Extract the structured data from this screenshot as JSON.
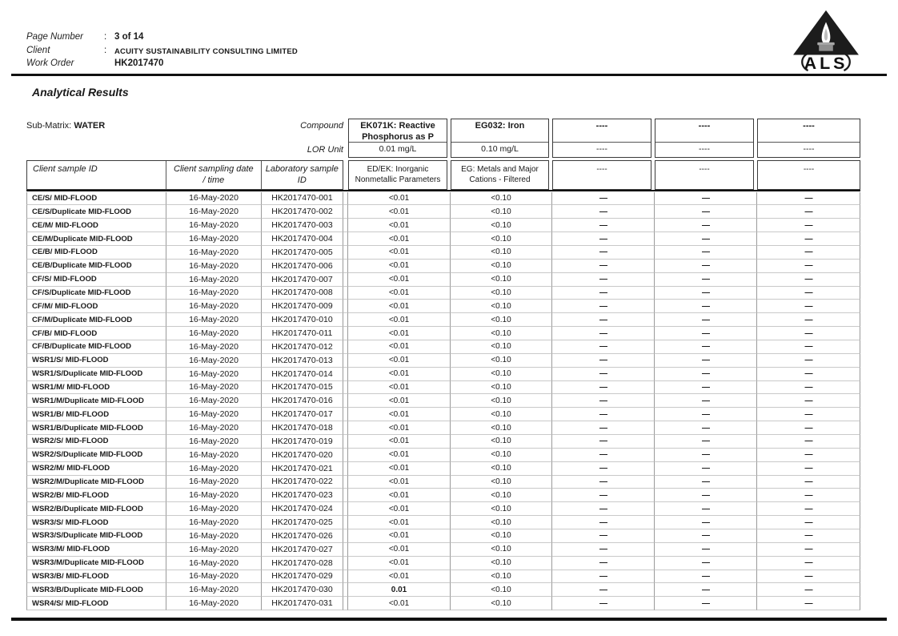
{
  "header": {
    "page_number_label": "Page Number",
    "page_number_colon": ":",
    "page_number_value": "3 of 14",
    "client_label": "Client",
    "client_colon": ":",
    "client_value": "ACUITY SUSTAINABILITY CONSULTING LIMITED",
    "work_order_label": "Work Order",
    "work_order_colon": "",
    "work_order_value": "HK2017470",
    "logo_text": "ALS"
  },
  "title": "Analytical Results",
  "table": {
    "sub_matrix_label": "Sub-Matrix:",
    "sub_matrix_value": "WATER",
    "compound_label": "Compound",
    "lor_unit_label": "LOR Unit",
    "columns": {
      "sample_id": "Client sample ID",
      "sampling_date_line1": "Client sampling date",
      "sampling_date_line2": "/ time",
      "lab_sample_line1": "Laboratory sample",
      "lab_sample_line2": "ID"
    },
    "methods": [
      {
        "compound": "EK071K: Reactive Phosphorus as P",
        "lor": "0.01 mg/L",
        "group": "ED/EK: Inorganic Nonmetallic Parameters"
      },
      {
        "compound": "EG032: Iron",
        "lor": "0.10 mg/L",
        "group": "EG: Metals and Major Cations - Filtered"
      },
      {
        "compound": "----",
        "lor": "----",
        "group": "----"
      },
      {
        "compound": "----",
        "lor": "----",
        "group": "----"
      },
      {
        "compound": "----",
        "lor": "----",
        "group": "----"
      }
    ],
    "rows": [
      {
        "sample_id": "CE/S/ MID-FLOOD",
        "date": "16-May-2020",
        "lab_id": "HK2017470-001",
        "reactive_p": "<0.01",
        "reactive_p_bold": false,
        "iron": "<0.10",
        "c4": "—",
        "c5": "—",
        "c6": "—"
      },
      {
        "sample_id": "CE/S/Duplicate MID-FLOOD",
        "date": "16-May-2020",
        "lab_id": "HK2017470-002",
        "reactive_p": "<0.01",
        "reactive_p_bold": false,
        "iron": "<0.10",
        "c4": "—",
        "c5": "—",
        "c6": "—"
      },
      {
        "sample_id": "CE/M/ MID-FLOOD",
        "date": "16-May-2020",
        "lab_id": "HK2017470-003",
        "reactive_p": "<0.01",
        "reactive_p_bold": false,
        "iron": "<0.10",
        "c4": "—",
        "c5": "—",
        "c6": "—"
      },
      {
        "sample_id": "CE/M/Duplicate MID-FLOOD",
        "date": "16-May-2020",
        "lab_id": "HK2017470-004",
        "reactive_p": "<0.01",
        "reactive_p_bold": false,
        "iron": "<0.10",
        "c4": "—",
        "c5": "—",
        "c6": "—"
      },
      {
        "sample_id": "CE/B/ MID-FLOOD",
        "date": "16-May-2020",
        "lab_id": "HK2017470-005",
        "reactive_p": "<0.01",
        "reactive_p_bold": false,
        "iron": "<0.10",
        "c4": "—",
        "c5": "—",
        "c6": "—"
      },
      {
        "sample_id": "CE/B/Duplicate MID-FLOOD",
        "date": "16-May-2020",
        "lab_id": "HK2017470-006",
        "reactive_p": "<0.01",
        "reactive_p_bold": false,
        "iron": "<0.10",
        "c4": "—",
        "c5": "—",
        "c6": "—"
      },
      {
        "sample_id": "CF/S/ MID-FLOOD",
        "date": "16-May-2020",
        "lab_id": "HK2017470-007",
        "reactive_p": "<0.01",
        "reactive_p_bold": false,
        "iron": "<0.10",
        "c4": "—",
        "c5": "—",
        "c6": "—"
      },
      {
        "sample_id": "CF/S/Duplicate MID-FLOOD",
        "date": "16-May-2020",
        "lab_id": "HK2017470-008",
        "reactive_p": "<0.01",
        "reactive_p_bold": false,
        "iron": "<0.10",
        "c4": "—",
        "c5": "—",
        "c6": "—"
      },
      {
        "sample_id": "CF/M/ MID-FLOOD",
        "date": "16-May-2020",
        "lab_id": "HK2017470-009",
        "reactive_p": "<0.01",
        "reactive_p_bold": false,
        "iron": "<0.10",
        "c4": "—",
        "c5": "—",
        "c6": "—"
      },
      {
        "sample_id": "CF/M/Duplicate MID-FLOOD",
        "date": "16-May-2020",
        "lab_id": "HK2017470-010",
        "reactive_p": "<0.01",
        "reactive_p_bold": false,
        "iron": "<0.10",
        "c4": "—",
        "c5": "—",
        "c6": "—"
      },
      {
        "sample_id": "CF/B/ MID-FLOOD",
        "date": "16-May-2020",
        "lab_id": "HK2017470-011",
        "reactive_p": "<0.01",
        "reactive_p_bold": false,
        "iron": "<0.10",
        "c4": "—",
        "c5": "—",
        "c6": "—"
      },
      {
        "sample_id": "CF/B/Duplicate MID-FLOOD",
        "date": "16-May-2020",
        "lab_id": "HK2017470-012",
        "reactive_p": "<0.01",
        "reactive_p_bold": false,
        "iron": "<0.10",
        "c4": "—",
        "c5": "—",
        "c6": "—"
      },
      {
        "sample_id": "WSR1/S/ MID-FLOOD",
        "date": "16-May-2020",
        "lab_id": "HK2017470-013",
        "reactive_p": "<0.01",
        "reactive_p_bold": false,
        "iron": "<0.10",
        "c4": "—",
        "c5": "—",
        "c6": "—"
      },
      {
        "sample_id": "WSR1/S/Duplicate MID-FLOOD",
        "date": "16-May-2020",
        "lab_id": "HK2017470-014",
        "reactive_p": "<0.01",
        "reactive_p_bold": false,
        "iron": "<0.10",
        "c4": "—",
        "c5": "—",
        "c6": "—"
      },
      {
        "sample_id": "WSR1/M/ MID-FLOOD",
        "date": "16-May-2020",
        "lab_id": "HK2017470-015",
        "reactive_p": "<0.01",
        "reactive_p_bold": false,
        "iron": "<0.10",
        "c4": "—",
        "c5": "—",
        "c6": "—"
      },
      {
        "sample_id": "WSR1/M/Duplicate MID-FLOOD",
        "date": "16-May-2020",
        "lab_id": "HK2017470-016",
        "reactive_p": "<0.01",
        "reactive_p_bold": false,
        "iron": "<0.10",
        "c4": "—",
        "c5": "—",
        "c6": "—"
      },
      {
        "sample_id": "WSR1/B/ MID-FLOOD",
        "date": "16-May-2020",
        "lab_id": "HK2017470-017",
        "reactive_p": "<0.01",
        "reactive_p_bold": false,
        "iron": "<0.10",
        "c4": "—",
        "c5": "—",
        "c6": "—"
      },
      {
        "sample_id": "WSR1/B/Duplicate MID-FLOOD",
        "date": "16-May-2020",
        "lab_id": "HK2017470-018",
        "reactive_p": "<0.01",
        "reactive_p_bold": false,
        "iron": "<0.10",
        "c4": "—",
        "c5": "—",
        "c6": "—"
      },
      {
        "sample_id": "WSR2/S/ MID-FLOOD",
        "date": "16-May-2020",
        "lab_id": "HK2017470-019",
        "reactive_p": "<0.01",
        "reactive_p_bold": false,
        "iron": "<0.10",
        "c4": "—",
        "c5": "—",
        "c6": "—"
      },
      {
        "sample_id": "WSR2/S/Duplicate MID-FLOOD",
        "date": "16-May-2020",
        "lab_id": "HK2017470-020",
        "reactive_p": "<0.01",
        "reactive_p_bold": false,
        "iron": "<0.10",
        "c4": "—",
        "c5": "—",
        "c6": "—"
      },
      {
        "sample_id": "WSR2/M/ MID-FLOOD",
        "date": "16-May-2020",
        "lab_id": "HK2017470-021",
        "reactive_p": "<0.01",
        "reactive_p_bold": false,
        "iron": "<0.10",
        "c4": "—",
        "c5": "—",
        "c6": "—"
      },
      {
        "sample_id": "WSR2/M/Duplicate MID-FLOOD",
        "date": "16-May-2020",
        "lab_id": "HK2017470-022",
        "reactive_p": "<0.01",
        "reactive_p_bold": false,
        "iron": "<0.10",
        "c4": "—",
        "c5": "—",
        "c6": "—"
      },
      {
        "sample_id": "WSR2/B/ MID-FLOOD",
        "date": "16-May-2020",
        "lab_id": "HK2017470-023",
        "reactive_p": "<0.01",
        "reactive_p_bold": false,
        "iron": "<0.10",
        "c4": "—",
        "c5": "—",
        "c6": "—"
      },
      {
        "sample_id": "WSR2/B/Duplicate MID-FLOOD",
        "date": "16-May-2020",
        "lab_id": "HK2017470-024",
        "reactive_p": "<0.01",
        "reactive_p_bold": false,
        "iron": "<0.10",
        "c4": "—",
        "c5": "—",
        "c6": "—"
      },
      {
        "sample_id": "WSR3/S/ MID-FLOOD",
        "date": "16-May-2020",
        "lab_id": "HK2017470-025",
        "reactive_p": "<0.01",
        "reactive_p_bold": false,
        "iron": "<0.10",
        "c4": "—",
        "c5": "—",
        "c6": "—"
      },
      {
        "sample_id": "WSR3/S/Duplicate MID-FLOOD",
        "date": "16-May-2020",
        "lab_id": "HK2017470-026",
        "reactive_p": "<0.01",
        "reactive_p_bold": false,
        "iron": "<0.10",
        "c4": "—",
        "c5": "—",
        "c6": "—"
      },
      {
        "sample_id": "WSR3/M/ MID-FLOOD",
        "date": "16-May-2020",
        "lab_id": "HK2017470-027",
        "reactive_p": "<0.01",
        "reactive_p_bold": false,
        "iron": "<0.10",
        "c4": "—",
        "c5": "—",
        "c6": "—"
      },
      {
        "sample_id": "WSR3/M/Duplicate MID-FLOOD",
        "date": "16-May-2020",
        "lab_id": "HK2017470-028",
        "reactive_p": "<0.01",
        "reactive_p_bold": false,
        "iron": "<0.10",
        "c4": "—",
        "c5": "—",
        "c6": "—"
      },
      {
        "sample_id": "WSR3/B/ MID-FLOOD",
        "date": "16-May-2020",
        "lab_id": "HK2017470-029",
        "reactive_p": "<0.01",
        "reactive_p_bold": false,
        "iron": "<0.10",
        "c4": "—",
        "c5": "—",
        "c6": "—"
      },
      {
        "sample_id": "WSR3/B/Duplicate MID-FLOOD",
        "date": "16-May-2020",
        "lab_id": "HK2017470-030",
        "reactive_p": "0.01",
        "reactive_p_bold": true,
        "iron": "<0.10",
        "c4": "—",
        "c5": "—",
        "c6": "—"
      },
      {
        "sample_id": "WSR4/S/ MID-FLOOD",
        "date": "16-May-2020",
        "lab_id": "HK2017470-031",
        "reactive_p": "<0.01",
        "reactive_p_bold": false,
        "iron": "<0.10",
        "c4": "—",
        "c5": "—",
        "c6": "—"
      }
    ]
  }
}
